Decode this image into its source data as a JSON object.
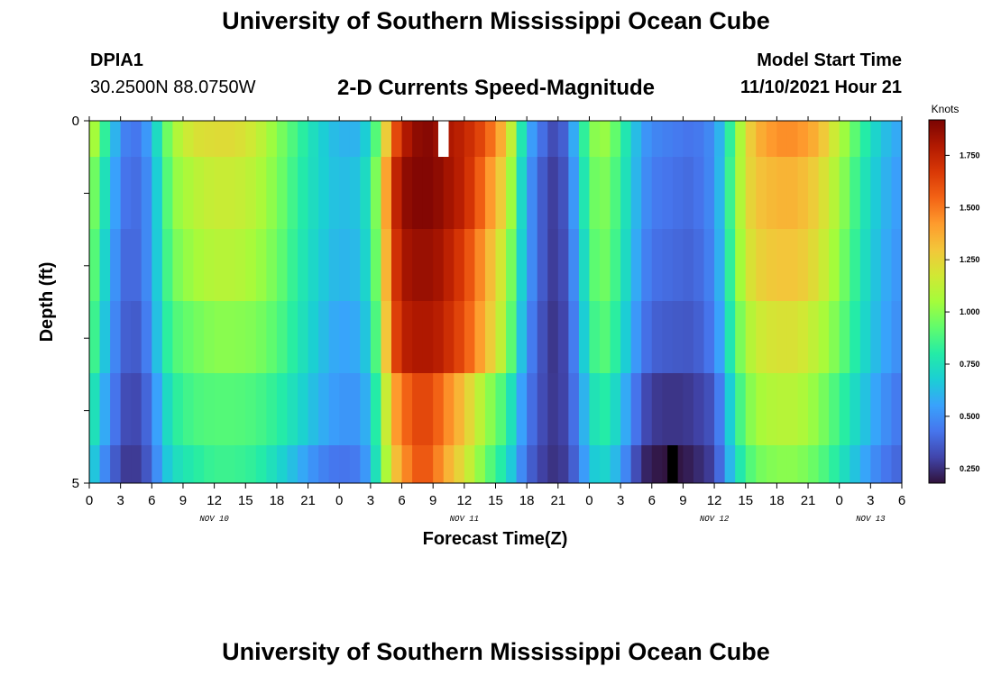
{
  "header": {
    "title": "University of Southern Mississippi Ocean Cube",
    "station": "DPIA1",
    "coords": "30.2500N  88.0750W",
    "chart_title": "2-D Currents Speed-Magnitude",
    "model_label": "Model Start Time",
    "model_time": "11/10/2021 Hour 21"
  },
  "footer": {
    "title": "University of Southern Mississippi Ocean Cube"
  },
  "colors": {
    "background": "#ffffff",
    "axis": "#000000",
    "missing_surface": "#ffffff",
    "missing_bottom": "#000000"
  },
  "chart_data": {
    "type": "heatmap",
    "title": "2-D Currents Speed-Magnitude",
    "xlabel": "Forecast Time(Z)",
    "ylabel": "Depth (ft)",
    "x_tick_labels": [
      "0",
      "3",
      "6",
      "9",
      "12",
      "15",
      "18",
      "21",
      "0",
      "3",
      "6",
      "9",
      "12",
      "15",
      "18",
      "21",
      "0",
      "3",
      "6",
      "9",
      "12",
      "15",
      "18",
      "21",
      "0",
      "3",
      "6"
    ],
    "date_labels": [
      {
        "label": "NOV 10",
        "hour": 12
      },
      {
        "label": "NOV 11",
        "hour": 36
      },
      {
        "label": "NOV 12",
        "hour": 60
      },
      {
        "label": "NOV 13",
        "hour": 75
      }
    ],
    "x_hours_range": [
      0,
      78
    ],
    "y_tick_labels": [
      "0",
      "5"
    ],
    "ylim": [
      0,
      5
    ],
    "depth_rows": [
      0,
      1,
      2,
      3,
      4,
      5
    ],
    "time_keyframes_hours": [
      0,
      1,
      2,
      3,
      4,
      5,
      6,
      7,
      8,
      10,
      12,
      14,
      16,
      18,
      20,
      22,
      24,
      26,
      27,
      28,
      29,
      30,
      31,
      32,
      33,
      34,
      36,
      38,
      40,
      42,
      44,
      45,
      46,
      47,
      48,
      49,
      50,
      51,
      52,
      53,
      54,
      56,
      58,
      60,
      61,
      62,
      63,
      64,
      66,
      68,
      70,
      72,
      74,
      76,
      78
    ],
    "speed_knots": [
      [
        1.15,
        0.95,
        0.7,
        0.5,
        0.42,
        0.45,
        0.6,
        0.85,
        1.05,
        1.2,
        1.22,
        1.22,
        1.15,
        1.0,
        0.85,
        0.7,
        0.6,
        0.6,
        0.75,
        1.05,
        1.5,
        1.75,
        1.85,
        1.9,
        1.88,
        1.82,
        1.75,
        1.6,
        1.3,
        0.6,
        0.35,
        0.3,
        0.45,
        0.7,
        0.95,
        1.05,
        1.0,
        0.85,
        0.7,
        0.55,
        0.48,
        0.45,
        0.42,
        0.5,
        0.7,
        0.95,
        1.2,
        1.35,
        1.45,
        1.45,
        1.35,
        1.1,
        0.85,
        0.65,
        0.55
      ],
      [
        1.05,
        0.85,
        0.65,
        0.45,
        0.4,
        0.42,
        0.55,
        0.8,
        1.0,
        1.1,
        1.15,
        1.15,
        1.1,
        0.98,
        0.82,
        0.7,
        0.62,
        0.65,
        0.8,
        1.15,
        1.65,
        1.85,
        1.9,
        1.9,
        1.9,
        1.85,
        1.75,
        1.5,
        1.2,
        0.55,
        0.3,
        0.28,
        0.4,
        0.65,
        0.9,
        1.0,
        0.95,
        0.82,
        0.68,
        0.53,
        0.45,
        0.42,
        0.4,
        0.5,
        0.72,
        0.98,
        1.2,
        1.3,
        1.35,
        1.35,
        1.25,
        1.05,
        0.8,
        0.62,
        0.52
      ],
      [
        1.0,
        0.8,
        0.6,
        0.42,
        0.38,
        0.42,
        0.55,
        0.78,
        0.95,
        1.05,
        1.1,
        1.1,
        1.05,
        0.95,
        0.8,
        0.68,
        0.6,
        0.62,
        0.78,
        1.1,
        1.6,
        1.8,
        1.85,
        1.85,
        1.85,
        1.8,
        1.65,
        1.4,
        1.1,
        0.55,
        0.3,
        0.27,
        0.38,
        0.6,
        0.85,
        0.98,
        0.92,
        0.8,
        0.65,
        0.5,
        0.42,
        0.4,
        0.38,
        0.48,
        0.7,
        0.95,
        1.15,
        1.25,
        1.3,
        1.3,
        1.2,
        1.0,
        0.78,
        0.6,
        0.5
      ],
      [
        0.95,
        0.75,
        0.55,
        0.4,
        0.35,
        0.38,
        0.52,
        0.75,
        0.88,
        0.95,
        1.0,
        1.0,
        0.98,
        0.9,
        0.78,
        0.65,
        0.55,
        0.58,
        0.72,
        1.05,
        1.55,
        1.75,
        1.8,
        1.8,
        1.8,
        1.75,
        1.6,
        1.35,
        1.05,
        0.5,
        0.28,
        0.26,
        0.35,
        0.55,
        0.8,
        0.92,
        0.88,
        0.75,
        0.6,
        0.45,
        0.38,
        0.36,
        0.35,
        0.45,
        0.65,
        0.9,
        1.05,
        1.15,
        1.2,
        1.2,
        1.1,
        0.95,
        0.75,
        0.58,
        0.48
      ],
      [
        0.85,
        0.65,
        0.5,
        0.35,
        0.3,
        0.33,
        0.45,
        0.65,
        0.8,
        0.88,
        0.9,
        0.9,
        0.88,
        0.82,
        0.72,
        0.6,
        0.52,
        0.52,
        0.65,
        0.95,
        1.35,
        1.5,
        1.6,
        1.65,
        1.6,
        1.5,
        1.3,
        1.05,
        0.85,
        0.45,
        0.28,
        0.27,
        0.33,
        0.5,
        0.7,
        0.82,
        0.78,
        0.65,
        0.5,
        0.35,
        0.28,
        0.26,
        0.28,
        0.35,
        0.55,
        0.8,
        0.95,
        1.05,
        1.1,
        1.1,
        1.0,
        0.85,
        0.68,
        0.52,
        0.42
      ],
      [
        0.75,
        0.55,
        0.42,
        0.3,
        0.26,
        0.3,
        0.4,
        0.6,
        0.72,
        0.8,
        0.85,
        0.85,
        0.82,
        0.72,
        0.6,
        0.48,
        0.42,
        0.45,
        0.6,
        0.9,
        1.25,
        1.4,
        1.55,
        1.6,
        1.55,
        1.4,
        1.2,
        0.95,
        0.75,
        0.4,
        0.26,
        0.26,
        0.3,
        0.45,
        0.62,
        0.72,
        0.68,
        0.55,
        0.4,
        0.25,
        0.2,
        0.18,
        0.22,
        0.3,
        0.5,
        0.72,
        0.85,
        0.95,
        1.0,
        1.0,
        0.92,
        0.78,
        0.6,
        0.45,
        0.38
      ]
    ],
    "missing": [
      {
        "depth_row": 0,
        "hours": [
          33.5,
          34.5
        ],
        "shown_as": "white"
      },
      {
        "depth_row": 5,
        "hours": [
          55.5,
          56.5
        ],
        "shown_as": "black"
      }
    ],
    "colorbar": {
      "label": "Knots",
      "range": [
        0.18,
        1.92
      ],
      "ticks": [
        {
          "value": 0.25,
          "label": "0.250"
        },
        {
          "value": 0.5,
          "label": "0.500"
        },
        {
          "value": 0.75,
          "label": "0.750"
        },
        {
          "value": 1.0,
          "label": "1.000"
        },
        {
          "value": 1.25,
          "label": "1.250"
        },
        {
          "value": 1.5,
          "label": "1.500"
        },
        {
          "value": 1.75,
          "label": "1.750"
        }
      ],
      "colormap": [
        "#30123b",
        "#4145ab",
        "#4675ed",
        "#39a2fc",
        "#1bcfd4",
        "#24eca6",
        "#61fc6c",
        "#a4fc3b",
        "#d1e834",
        "#f3c63a",
        "#fe9b2d",
        "#f36315",
        "#d93806",
        "#b11901",
        "#7a0403"
      ]
    }
  }
}
